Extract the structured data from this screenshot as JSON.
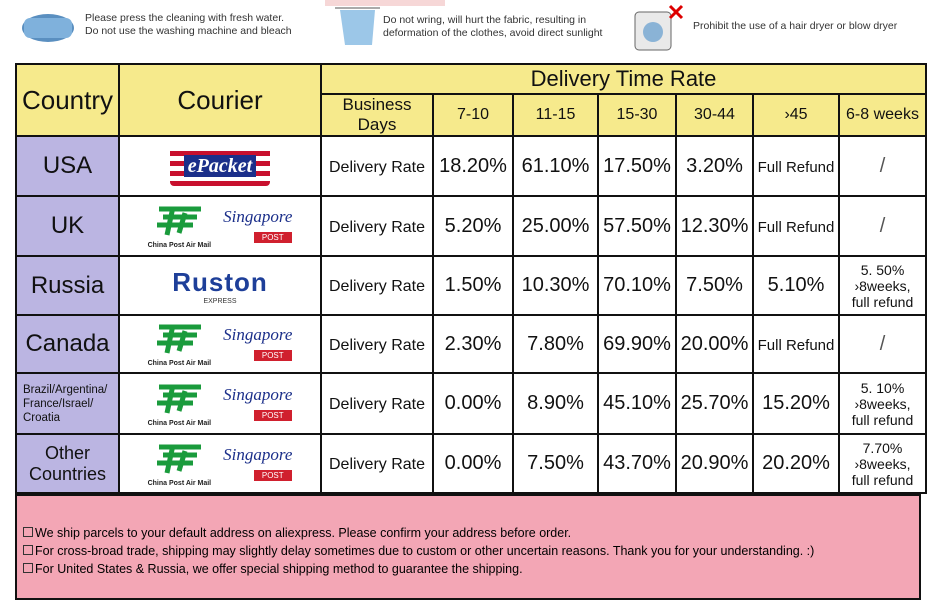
{
  "care": [
    {
      "lines": [
        "Please press the cleaning with fresh water.",
        "Do not use the washing machine and bleach"
      ]
    },
    {
      "lines": [
        "Do not wring, will hurt the fabric, resulting in",
        "deformation of the clothes, avoid direct sunlight"
      ]
    },
    {
      "lines": [
        "Prohibit the use of a hair dryer or blow dryer"
      ]
    }
  ],
  "table": {
    "country_header": "Country",
    "courier_header": "Courier",
    "title": "Delivery Time Rate",
    "subheaders": [
      "Business Days",
      "7-10",
      "11-15",
      "15-30",
      "30-44",
      "›45",
      "6-8 weeks"
    ],
    "rows": [
      {
        "country": [
          "USA"
        ],
        "couriers": [
          {
            "name": "ePacket",
            "style": "flag",
            "color": "#c8102e"
          }
        ],
        "label": "Delivery Rate",
        "rates": [
          "18.20%",
          "61.10%",
          "17.50%",
          "3.20%",
          "Full Refund"
        ],
        "weeks": [
          "/"
        ]
      },
      {
        "country": [
          "UK"
        ],
        "couriers": [
          {
            "name": "China Post Air Mail",
            "style": "icon",
            "color": "#1a9b3c"
          },
          {
            "name": "Singapore",
            "sub": "POST",
            "style": "script",
            "color": "#1b2f8a"
          }
        ],
        "label": "Delivery Rate",
        "rates": [
          "5.20%",
          "25.00%",
          "57.50%",
          "12.30%",
          "Full Refund"
        ],
        "weeks": [
          "/"
        ]
      },
      {
        "country": [
          "Russia"
        ],
        "couriers": [
          {
            "name": "Ruston",
            "sub": "EXPRESS",
            "style": "bold",
            "color": "#1e3f99"
          }
        ],
        "label": "Delivery Rate",
        "rates": [
          "1.50%",
          "10.30%",
          "70.10%",
          "7.50%",
          "5.10%"
        ],
        "weeks": [
          "5. 50%",
          "›8weeks,",
          "full refund"
        ]
      },
      {
        "country": [
          "Canada"
        ],
        "couriers": [
          {
            "name": "China Post Air Mail",
            "style": "icon",
            "color": "#1a9b3c"
          },
          {
            "name": "Singapore",
            "sub": "POST",
            "style": "script",
            "color": "#1b2f8a"
          }
        ],
        "label": "Delivery Rate",
        "rates": [
          "2.30%",
          "7.80%",
          "69.90%",
          "20.00%",
          "Full Refund"
        ],
        "weeks": [
          "/"
        ]
      },
      {
        "country": [
          "Brazil/Argentina/",
          "France/Israel/",
          "Croatia"
        ],
        "couriers": [
          {
            "name": "China Post Air Mail",
            "style": "icon",
            "color": "#1a9b3c"
          },
          {
            "name": "Singapore",
            "sub": "POST",
            "style": "script",
            "color": "#1b2f8a"
          }
        ],
        "label": "Delivery Rate",
        "rates": [
          "0.00%",
          "8.90%",
          "45.10%",
          "25.70%",
          "15.20%"
        ],
        "weeks": [
          "5. 10%",
          "›8weeks,",
          "full refund"
        ]
      },
      {
        "country": [
          "Other Countries"
        ],
        "couriers": [
          {
            "name": "China Post Air Mail",
            "style": "icon",
            "color": "#1a9b3c"
          },
          {
            "name": "Singapore",
            "sub": "POST",
            "style": "script",
            "color": "#1b2f8a"
          }
        ],
        "label": "Delivery Rate",
        "rates": [
          "0.00%",
          "7.50%",
          "43.70%",
          "20.90%",
          "20.20%"
        ],
        "weeks": [
          "7.70%",
          "›8weeks,",
          "full refund"
        ]
      }
    ]
  },
  "notes": [
    "We ship parcels to your default address on aliexpress. Please confirm your address before order.",
    "For cross-broad trade, shipping may slightly delay sometimes due to custom or other uncertain reasons. Thank you for your understanding. :)",
    "For United States & Russia, we offer special shipping method to guarantee the shipping."
  ]
}
